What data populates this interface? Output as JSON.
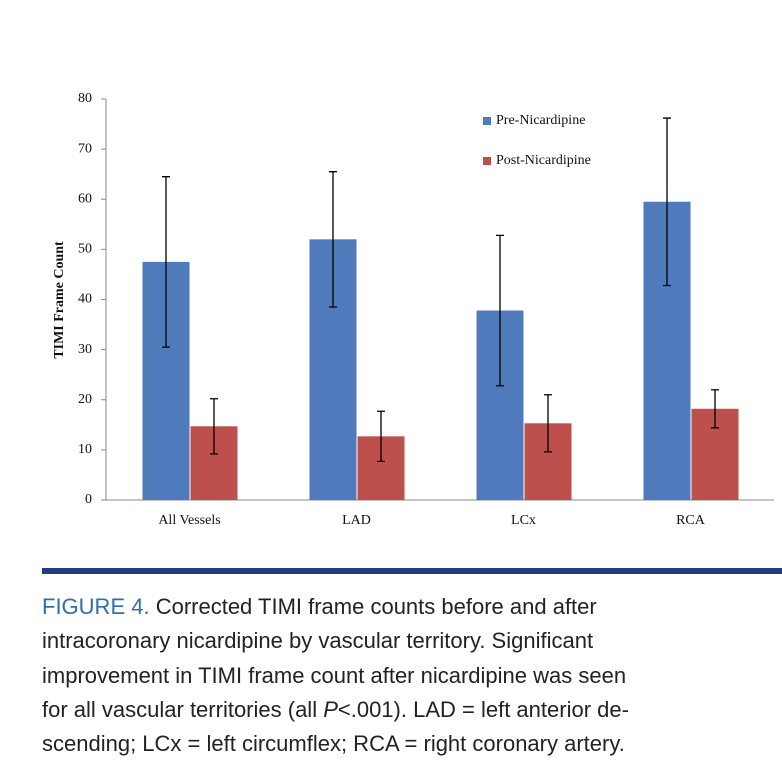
{
  "chart_data": {
    "type": "bar",
    "categories": [
      "All Vessels",
      "LAD",
      "LCx",
      "RCA"
    ],
    "y_label": "TIMI Frame Count",
    "ylim": [
      0,
      80
    ],
    "yticks": [
      0,
      10,
      20,
      30,
      40,
      50,
      60,
      70,
      80
    ],
    "series": [
      {
        "name": "Pre-Nicardipine",
        "color": "#4f7bbd",
        "values": [
          47.5,
          52,
          37.8,
          59.5
        ],
        "errors": [
          17,
          13.5,
          15,
          16.7
        ]
      },
      {
        "name": "Post-Nicardipine",
        "color": "#bd4f4c",
        "values": [
          14.7,
          12.7,
          15.3,
          18.2
        ],
        "errors": [
          5.5,
          5,
          5.7,
          3.8
        ]
      }
    ]
  },
  "caption": {
    "label": "FIGURE 4.",
    "line1": "Corrected TIMI frame counts before and after",
    "line2": "intracoronary nicardipine by vascular territory. Significant",
    "line3": "improvement in TIMI frame count after nicardipine was seen",
    "line4": {
      "before": "for all vascular territories (all ",
      "italic": "P",
      "after": "<.001). LAD = left anterior de-"
    },
    "line5": "scending; LCx = left circumflex; RCA = right coronary artery."
  }
}
